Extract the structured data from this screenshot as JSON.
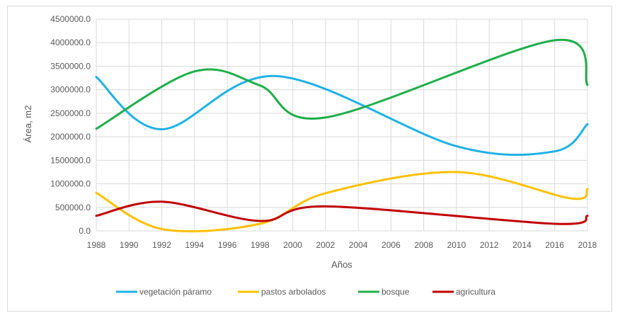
{
  "chart_data": {
    "type": "line",
    "title": "",
    "xlabel": "Años",
    "ylabel": "Área, m2",
    "xlim": [
      1988,
      2018
    ],
    "ylim": [
      0,
      4500000
    ],
    "x_ticks": [
      "1988",
      "1990",
      "1992",
      "1994",
      "1996",
      "1998",
      "2000",
      "2002",
      "2004",
      "2006",
      "2008",
      "2010",
      "2012",
      "2014",
      "2016",
      "2018"
    ],
    "y_ticks": [
      "0.0",
      "500000.0",
      "1000000.0",
      "1500000.0",
      "2000000.0",
      "2500000.0",
      "3000000.0",
      "3500000.0",
      "4000000.0",
      "4500000.0"
    ],
    "grid": true,
    "legend_position": "bottom",
    "series": [
      {
        "name": "vegetación páramo",
        "color": "#1fb1e6",
        "points": [
          [
            1988,
            3270000
          ],
          [
            1992,
            2160000
          ],
          [
            1999,
            3290000
          ],
          [
            2010,
            1800000
          ],
          [
            2016,
            1690000
          ],
          [
            2018,
            2270000
          ]
        ]
      },
      {
        "name": "pastos arbolados",
        "color": "#ffc000",
        "points": [
          [
            1988,
            810000
          ],
          [
            1992,
            40000
          ],
          [
            1998,
            150000
          ],
          [
            2002,
            800000
          ],
          [
            2010,
            1250000
          ],
          [
            2017,
            690000
          ],
          [
            2018,
            890000
          ]
        ]
      },
      {
        "name": "bosque",
        "color": "#1fae4b",
        "points": [
          [
            1988,
            2170000
          ],
          [
            1994,
            3390000
          ],
          [
            1998,
            3090000
          ],
          [
            2002,
            2410000
          ],
          [
            2016,
            4050000
          ],
          [
            2018,
            3100000
          ]
        ]
      },
      {
        "name": "agricultura",
        "color": "#c00000",
        "points": [
          [
            1988,
            320000
          ],
          [
            1992,
            620000
          ],
          [
            1998,
            210000
          ],
          [
            2002,
            520000
          ],
          [
            2016,
            150000
          ],
          [
            2018,
            320000
          ]
        ]
      }
    ]
  }
}
